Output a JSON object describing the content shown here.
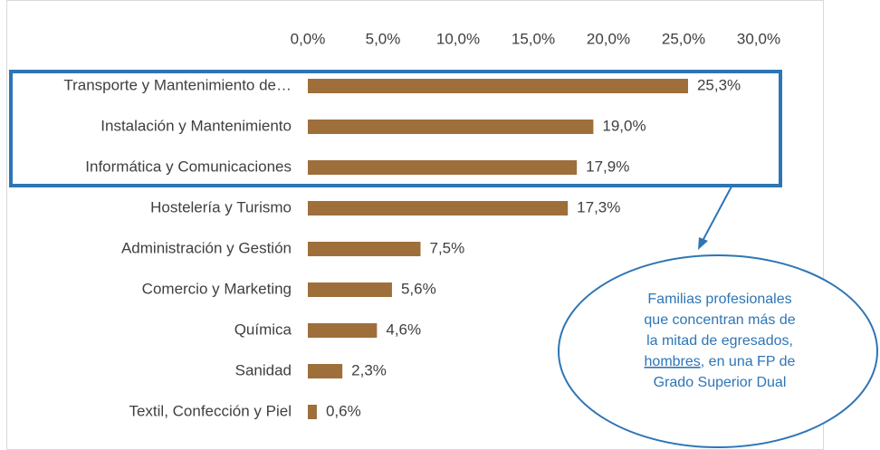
{
  "chart_data": {
    "type": "bar",
    "orientation": "horizontal",
    "categories": [
      "Transporte y Mantenimiento de…",
      "Instalación y Mantenimiento",
      "Informática y Comunicaciones",
      "Hostelería y Turismo",
      "Administración y Gestión",
      "Comercio y Marketing",
      "Química",
      "Sanidad",
      "Textil, Confección y Piel"
    ],
    "values": [
      25.3,
      19.0,
      17.9,
      17.3,
      7.5,
      5.6,
      4.6,
      2.3,
      0.6
    ],
    "value_labels": [
      "25,3%",
      "19,0%",
      "17,9%",
      "17,3%",
      "7,5%",
      "5,6%",
      "4,6%",
      "2,3%",
      "0,6%"
    ],
    "color": "#9e6f3a",
    "xlim": [
      0,
      30
    ],
    "xticks": [
      {
        "value": 0,
        "label": "0,0%"
      },
      {
        "value": 5,
        "label": "5,0%"
      },
      {
        "value": 10,
        "label": "10,0%"
      },
      {
        "value": 15,
        "label": "15,0%"
      },
      {
        "value": 20,
        "label": "20,0%"
      },
      {
        "value": 25,
        "label": "25,0%"
      },
      {
        "value": 30,
        "label": "30,0%"
      }
    ],
    "grid": false,
    "annotation": [
      "Familias profesionales",
      "que concentran más de",
      "la mitad de egresados,",
      "hombres",
      ", en una FP de",
      "Grado Superior Dual"
    ]
  }
}
